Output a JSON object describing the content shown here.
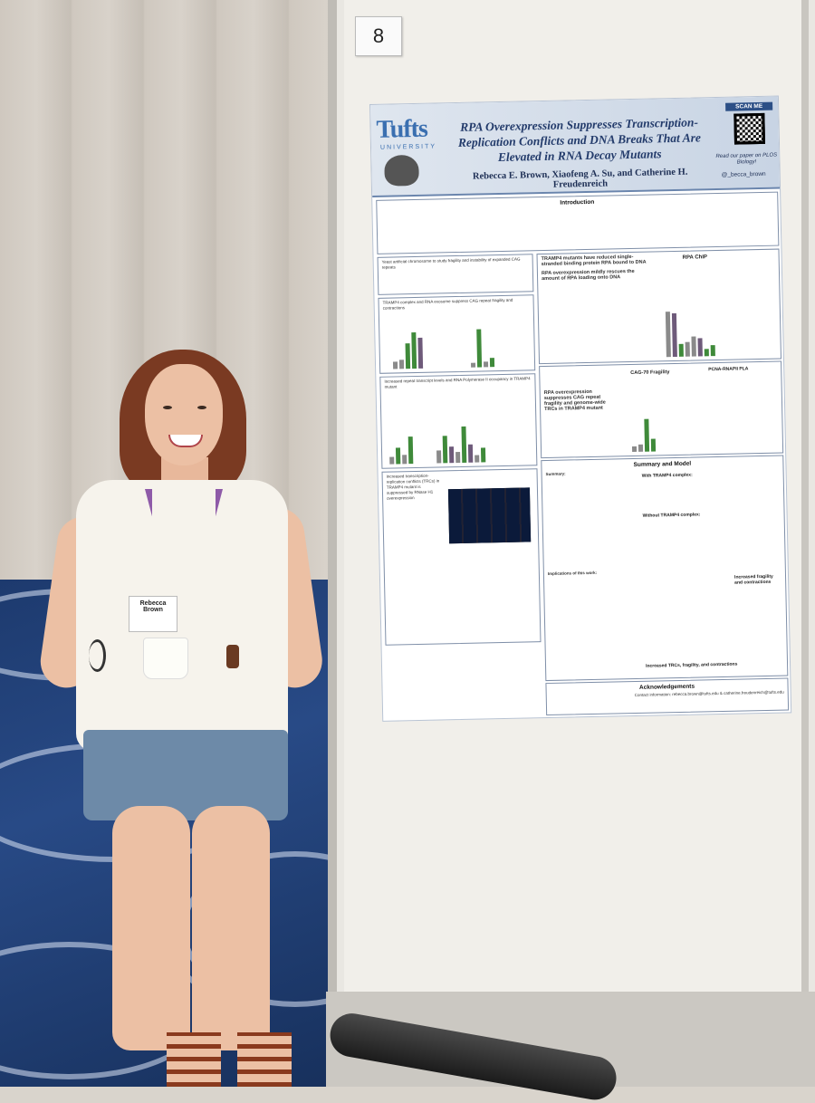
{
  "scene": {
    "booth_number": "8"
  },
  "poster": {
    "institution": "Tufts",
    "institution_sub": "UNIVERSITY",
    "title": "RPA Overexpression Suppresses Transcription-Replication Conflicts and DNA Breaks That Are Elevated in RNA Decay Mutants",
    "authors": "Rebecca E. Brown, Xiaofeng A. Su, and Catherine H. Freudenreich",
    "scan_label": "SCAN ME",
    "scan_note": "Read our paper on PLOS Biology!",
    "twitter": "@_becca_brown",
    "sections": {
      "introduction": "Introduction",
      "yac": "Yeast artificial chromosome to study fragility and instability of expanded CAG repeats",
      "tramp_exosome": "TRAMP4 complex and RNA exosome suppress CAG repeat fragility and contractions",
      "transcript": "Increased repeat transcript levels and RNA Polymerase II occupancy in TRAMP4 mutant",
      "trc": "Increased transcription-replication conflicts (TRCs) in TRAMP4 mutant is suppressed by RNase H1 overexpression",
      "rpa_chip_text": "TRAMP4 mutants have reduced single-stranded binding protein RPA bound to DNA",
      "rpa_chip_text2": "RPA overexpression mildly rescues the amount of RPA loading onto DNA",
      "rpa_chip_title": "RPA ChIP",
      "rpa_frag_text": "RPA overexpression suppresses CAG repeat fragility and genome-wide TRCs in TRAMP4 mutant",
      "cag70": "CAG-70 Fragility",
      "pla": "PCNA-RNAPII PLA",
      "summary": "Summary and Model",
      "summary_sub": "Summary:",
      "implications": "Implications of this work:",
      "ack": "Acknowledgements",
      "contact": "Contact information: rebecca.brown@tufts.edu & catherine.freudenreich@tufts.edu",
      "with": "With TRAMP4 complex:",
      "without": "Without TRAMP4 complex:",
      "outcome": "Increased fragility and contractions",
      "bottom": "Increased TRCs, fragility, and contractions"
    }
  },
  "person": {
    "badge_name": "Rebecca Brown"
  },
  "colors": {
    "poster_header": "#c8d4e4",
    "title_text": "#233b6b",
    "mutant_bar": "#3f8a3a",
    "carpet": "#284a86",
    "lanyard": "#8e5aa8"
  }
}
